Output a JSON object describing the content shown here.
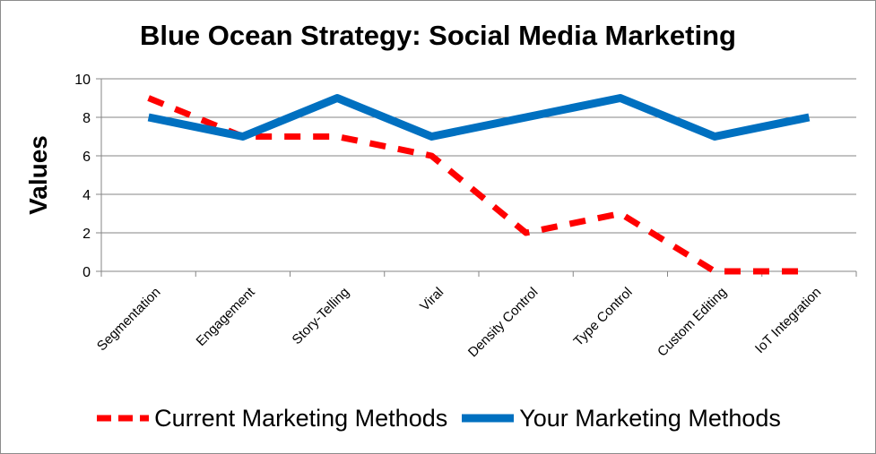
{
  "chart_data": {
    "type": "line",
    "title": "Blue Ocean Strategy: Social Media Marketing",
    "ylabel": "Values",
    "xlabel": "",
    "ylim": [
      0,
      10
    ],
    "yticks": [
      0,
      2,
      4,
      6,
      8,
      10
    ],
    "grid": true,
    "legend_position": "bottom",
    "categories": [
      "Segmentation",
      "Engagement",
      "Story-Telling",
      "Viral",
      "Density Control",
      "Type Control",
      "Custom Editing",
      "IoT Integration"
    ],
    "series": [
      {
        "name": "Current Marketing Methods",
        "values": [
          9,
          7,
          7,
          6,
          2,
          3,
          0,
          0
        ],
        "color": "#ff0000",
        "style": "dashed"
      },
      {
        "name": "Your Marketing Methods",
        "values": [
          8,
          7,
          9,
          7,
          8,
          9,
          7,
          8
        ],
        "color": "#0070c0",
        "style": "solid"
      }
    ]
  }
}
